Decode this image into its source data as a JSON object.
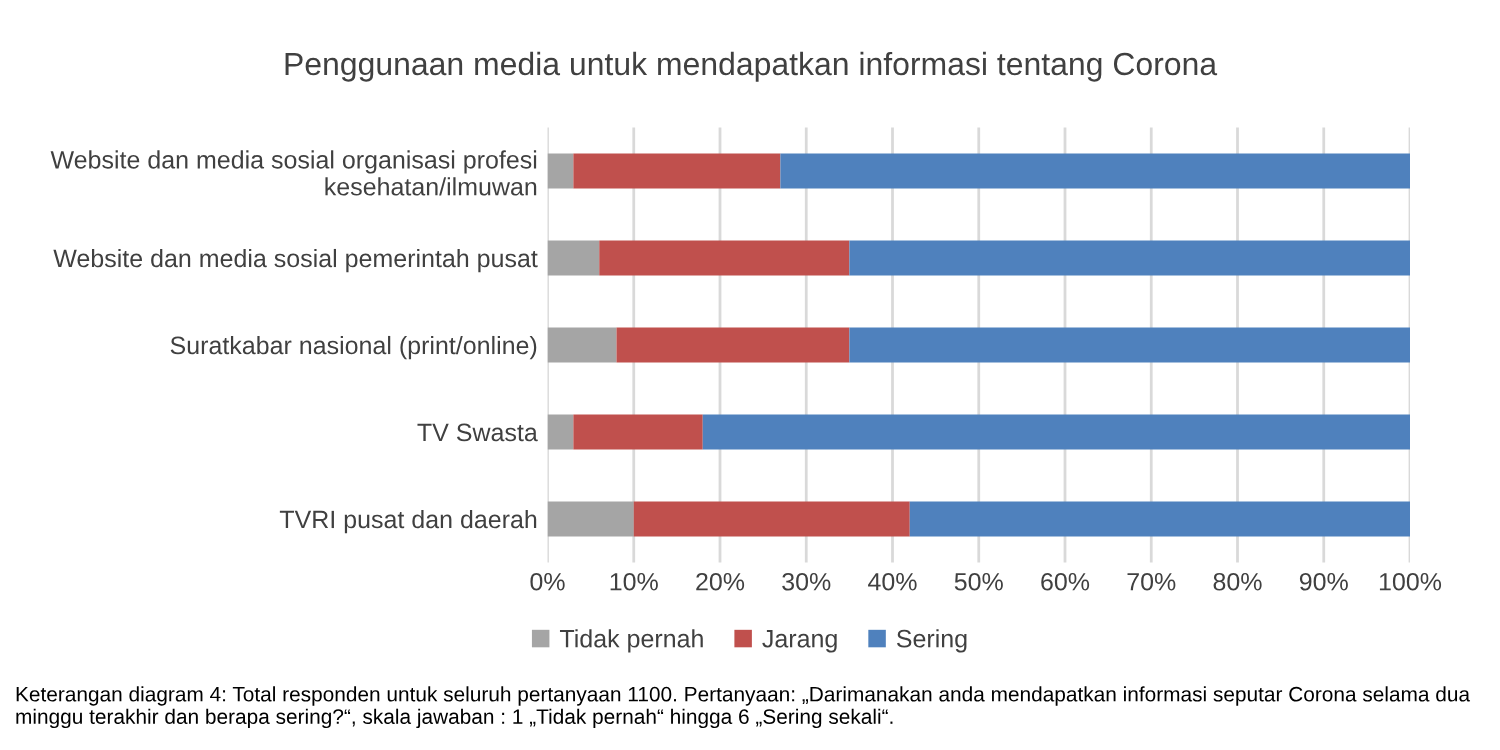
{
  "chart_data": {
    "type": "bar",
    "orientation": "horizontal",
    "stacked": true,
    "title": "Penggunaan media untuk mendapatkan informasi tentang Corona",
    "categories": [
      "Website dan media sosial organisasi profesi kesehatan/ilmuwan",
      "Website dan media sosial pemerintah pusat",
      "Suratkabar nasional (print/online)",
      "TV Swasta",
      "TVRI pusat dan daerah"
    ],
    "series": [
      {
        "name": "Tidak pernah",
        "color": "#a5a5a5",
        "values": [
          3,
          6,
          8,
          3,
          10
        ]
      },
      {
        "name": "Jarang",
        "color": "#c0504d",
        "values": [
          24,
          29,
          27,
          15,
          32
        ]
      },
      {
        "name": "Sering",
        "color": "#4f81bd",
        "values": [
          73,
          65,
          65,
          82,
          58
        ]
      }
    ],
    "xlim": [
      0,
      100
    ],
    "xticks": [
      {
        "value": 0,
        "label": "0%"
      },
      {
        "value": 10,
        "label": "10%"
      },
      {
        "value": 20,
        "label": "20%"
      },
      {
        "value": 30,
        "label": "30%"
      },
      {
        "value": 40,
        "label": "40%"
      },
      {
        "value": 50,
        "label": "50%"
      },
      {
        "value": 60,
        "label": "60%"
      },
      {
        "value": 70,
        "label": "70%"
      },
      {
        "value": 80,
        "label": "80%"
      },
      {
        "value": 90,
        "label": "90%"
      },
      {
        "value": 100,
        "label": "100%"
      }
    ],
    "grid": "x",
    "legend": "bottom",
    "annotations": [
      "Keterangan diagram 4: Total responden untuk seluruh pertanyaan 1100. Pertanyaan: „Darimanakan anda mendapatkan informasi seputar Corona selama dua minggu terakhir dan berapa sering?“, skala jawaban : 1 „Tidak pernah“ hingga 6 „Sering sekali“."
    ]
  }
}
